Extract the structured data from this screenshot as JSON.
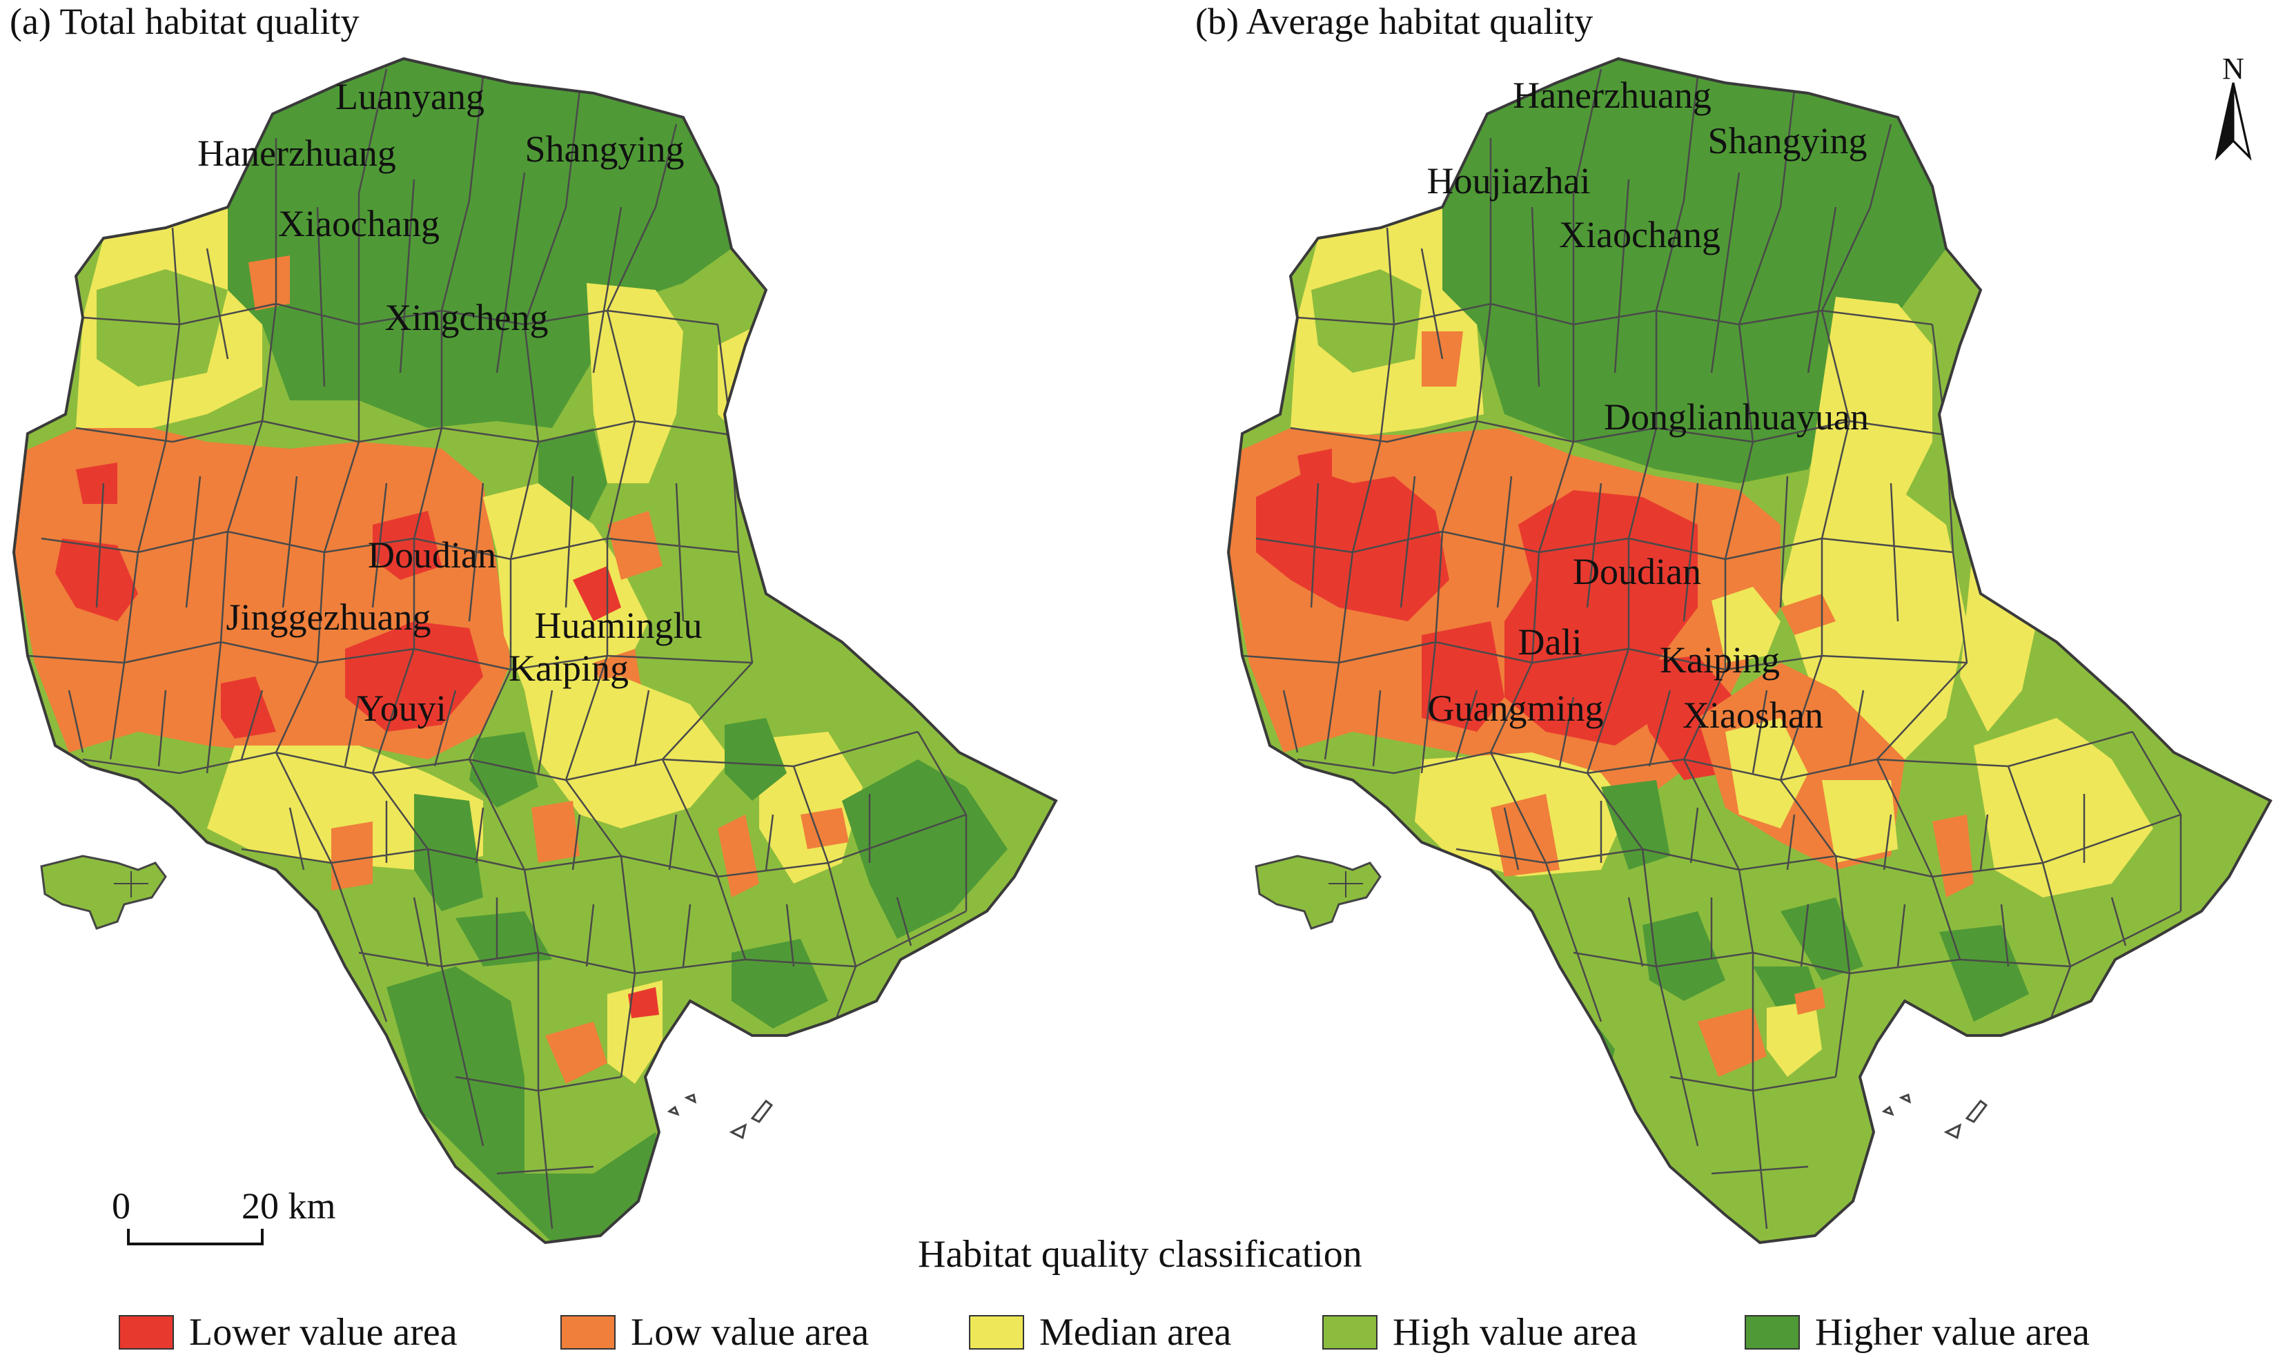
{
  "panels": [
    {
      "title": "(a) Total habitat quality",
      "labels": [
        "Luanyang",
        "Hanerzhuang",
        "Shangying",
        "Xiaochang",
        "Xingcheng",
        "Doudian",
        "Jinggezhuang",
        "Huaminglu",
        "Kaiping",
        "Youyi"
      ]
    },
    {
      "title": "(b) Average habitat quality",
      "labels": [
        "Hanerzhuang",
        "Shangying",
        "Houjiazhai",
        "Xiaochang",
        "Donglianhuayuan",
        "Doudian",
        "Dali",
        "Kaiping",
        "Guangming",
        "Xiaoshan"
      ]
    }
  ],
  "scale_bar": {
    "start": "0",
    "end": "20 km"
  },
  "north_arrow": {
    "label": "N"
  },
  "legend": {
    "title": "Habitat quality classification",
    "items": [
      {
        "label": "Lower value area",
        "color": "#e8392f"
      },
      {
        "label": "Low value area",
        "color": "#ef7f3b"
      },
      {
        "label": "Median area",
        "color": "#eee759"
      },
      {
        "label": "High value area",
        "color": "#8cbc3e"
      },
      {
        "label": "Higher value area",
        "color": "#4f9a36"
      }
    ]
  }
}
